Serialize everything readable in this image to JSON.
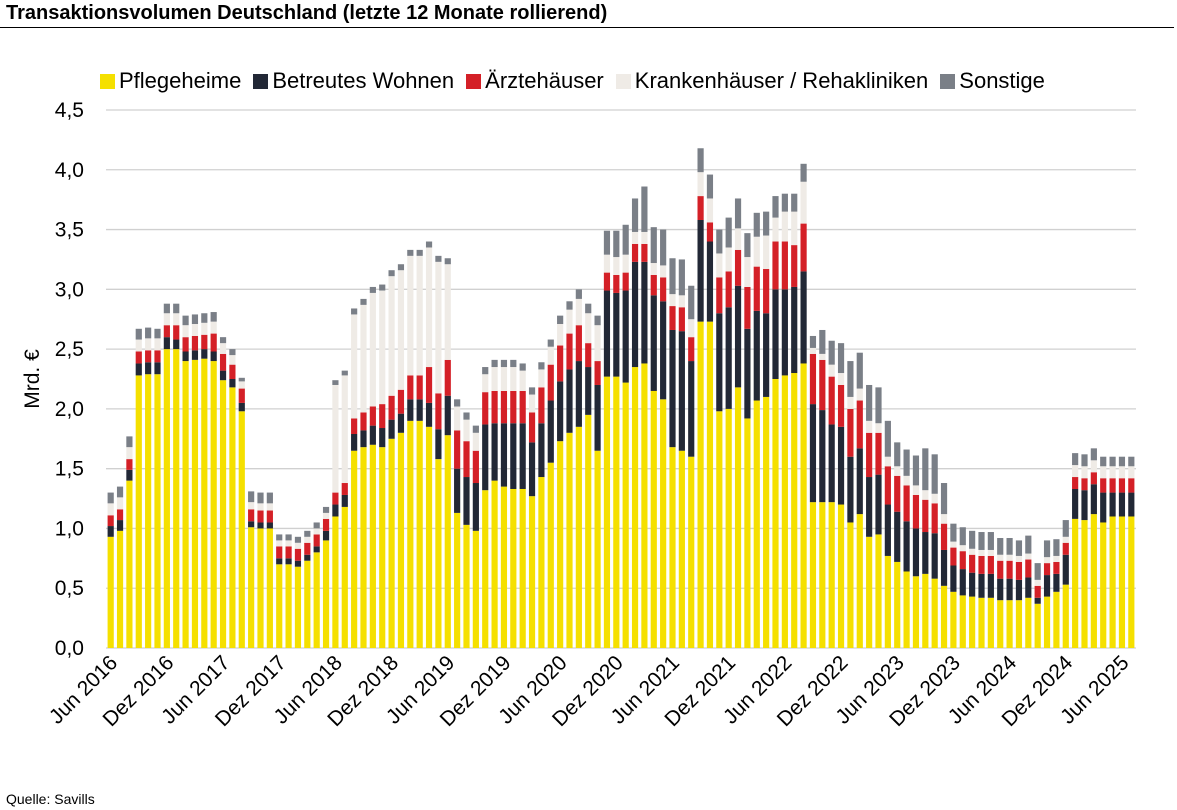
{
  "header": {
    "title": "Transaktionsvolumen Deutschland (letzte 12 Monate rollierend)"
  },
  "footer": {
    "source": "Quelle: Savills"
  },
  "chart_data": {
    "type": "bar",
    "stacked": true,
    "ylabel": "Mrd. €",
    "ylim": [
      0,
      4.5
    ],
    "yticks": [
      "0,0",
      "0,5",
      "1,0",
      "1,5",
      "2,0",
      "2,5",
      "3,0",
      "3,5",
      "4,0",
      "4,5"
    ],
    "grid": true,
    "legend_position": "top",
    "xtick_labels": [
      "Jun 2016",
      "Dez 2016",
      "Jun 2017",
      "Dez 2017",
      "Jun 2018",
      "Dez 2018",
      "Jun 2019",
      "Dez 2019",
      "Jun 2020",
      "Dez 2020",
      "Jun 2021",
      "Dez 2021",
      "Jun 2022",
      "Dez 2022",
      "Jun 2023",
      "Dez 2023",
      "Jun 2024",
      "Dez 2024",
      "Jun 2025"
    ],
    "tick_every": 6,
    "series": [
      {
        "name": "Pflegeheime",
        "color": "#f5e000",
        "values": [
          0.93,
          0.98,
          1.4,
          2.28,
          2.29,
          2.29,
          2.5,
          2.5,
          2.4,
          2.41,
          2.42,
          2.4,
          2.24,
          2.18,
          1.98,
          1.01,
          1.0,
          1.0,
          0.7,
          0.7,
          0.68,
          0.73,
          0.8,
          0.9,
          1.1,
          1.18,
          1.65,
          1.68,
          1.7,
          1.68,
          1.75,
          1.8,
          1.9,
          1.9,
          1.85,
          1.58,
          1.78,
          1.13,
          1.03,
          0.98,
          1.32,
          1.4,
          1.35,
          1.33,
          1.33,
          1.27,
          1.43,
          1.55,
          1.73,
          1.8,
          1.85,
          1.95,
          1.65,
          2.27,
          2.27,
          2.22,
          2.35,
          2.38,
          2.15,
          2.08,
          1.68,
          1.65,
          1.6,
          2.73,
          2.73,
          1.98,
          2.0,
          2.18,
          1.92,
          2.07,
          2.1,
          2.25,
          2.28,
          2.3,
          2.38,
          1.22,
          1.22,
          1.22,
          1.2,
          1.05,
          1.12,
          0.93,
          0.95,
          0.77,
          0.72,
          0.64,
          0.6,
          0.62,
          0.58,
          0.52,
          0.47,
          0.44,
          0.43,
          0.42,
          0.42,
          0.4,
          0.4,
          0.4,
          0.42,
          0.37,
          0.43,
          0.47,
          0.53,
          1.08,
          1.07,
          1.12,
          1.05,
          1.1,
          1.1,
          1.1
        ]
      },
      {
        "name": "Betreutes Wohnen",
        "color": "#222836",
        "values": [
          0.09,
          0.09,
          0.09,
          0.1,
          0.1,
          0.1,
          0.1,
          0.08,
          0.08,
          0.08,
          0.08,
          0.08,
          0.08,
          0.07,
          0.07,
          0.05,
          0.05,
          0.05,
          0.05,
          0.05,
          0.05,
          0.05,
          0.05,
          0.08,
          0.1,
          0.1,
          0.14,
          0.14,
          0.16,
          0.16,
          0.16,
          0.16,
          0.18,
          0.18,
          0.2,
          0.25,
          0.33,
          0.37,
          0.4,
          0.4,
          0.55,
          0.48,
          0.53,
          0.55,
          0.55,
          0.45,
          0.45,
          0.52,
          0.5,
          0.53,
          0.55,
          0.4,
          0.55,
          0.72,
          0.7,
          0.77,
          0.88,
          0.85,
          0.8,
          0.82,
          0.98,
          1.0,
          0.8,
          0.85,
          0.67,
          0.82,
          0.85,
          0.85,
          0.75,
          0.75,
          0.7,
          0.75,
          0.72,
          0.72,
          0.77,
          0.82,
          0.77,
          0.65,
          0.65,
          0.55,
          0.55,
          0.5,
          0.5,
          0.43,
          0.42,
          0.42,
          0.4,
          0.35,
          0.38,
          0.3,
          0.22,
          0.22,
          0.2,
          0.2,
          0.2,
          0.18,
          0.18,
          0.17,
          0.17,
          0.05,
          0.18,
          0.15,
          0.25,
          0.25,
          0.25,
          0.25,
          0.25,
          0.2,
          0.2,
          0.2
        ]
      },
      {
        "name": "Ärztehäuser",
        "color": "#d42027",
        "values": [
          0.09,
          0.09,
          0.09,
          0.1,
          0.1,
          0.1,
          0.1,
          0.12,
          0.12,
          0.12,
          0.12,
          0.15,
          0.14,
          0.12,
          0.12,
          0.1,
          0.1,
          0.1,
          0.1,
          0.1,
          0.1,
          0.1,
          0.1,
          0.1,
          0.1,
          0.1,
          0.13,
          0.15,
          0.16,
          0.2,
          0.2,
          0.2,
          0.2,
          0.2,
          0.3,
          0.3,
          0.3,
          0.32,
          0.3,
          0.27,
          0.27,
          0.27,
          0.27,
          0.27,
          0.27,
          0.25,
          0.3,
          0.3,
          0.3,
          0.3,
          0.3,
          0.2,
          0.2,
          0.15,
          0.15,
          0.15,
          0.15,
          0.15,
          0.17,
          0.2,
          0.2,
          0.2,
          0.2,
          0.2,
          0.16,
          0.3,
          0.3,
          0.3,
          0.35,
          0.37,
          0.37,
          0.4,
          0.4,
          0.35,
          0.4,
          0.42,
          0.42,
          0.4,
          0.35,
          0.4,
          0.4,
          0.37,
          0.35,
          0.32,
          0.3,
          0.3,
          0.28,
          0.27,
          0.25,
          0.22,
          0.15,
          0.15,
          0.15,
          0.15,
          0.15,
          0.15,
          0.15,
          0.15,
          0.15,
          0.1,
          0.1,
          0.1,
          0.1,
          0.1,
          0.1,
          0.1,
          0.12,
          0.12,
          0.12,
          0.12
        ]
      },
      {
        "name": "Krankenhäuser / Rehakliniken",
        "color": "#efebe6",
        "values": [
          0.1,
          0.1,
          0.1,
          0.1,
          0.1,
          0.1,
          0.1,
          0.1,
          0.1,
          0.1,
          0.1,
          0.1,
          0.09,
          0.08,
          0.06,
          0.06,
          0.06,
          0.06,
          0.05,
          0.05,
          0.05,
          0.05,
          0.05,
          0.05,
          0.9,
          0.9,
          0.87,
          0.9,
          0.95,
          0.95,
          1.0,
          1.0,
          1.0,
          1.0,
          1.0,
          1.1,
          0.8,
          0.2,
          0.18,
          0.15,
          0.15,
          0.2,
          0.2,
          0.2,
          0.17,
          0.15,
          0.15,
          0.15,
          0.18,
          0.2,
          0.22,
          0.25,
          0.3,
          0.15,
          0.15,
          0.15,
          0.1,
          0.1,
          0.1,
          0.1,
          0.1,
          0.1,
          0.15,
          0.2,
          0.2,
          0.2,
          0.2,
          0.18,
          0.25,
          0.25,
          0.28,
          0.2,
          0.25,
          0.28,
          0.35,
          0.05,
          0.05,
          0.1,
          0.1,
          0.1,
          0.1,
          0.1,
          0.08,
          0.08,
          0.08,
          0.08,
          0.08,
          0.08,
          0.08,
          0.08,
          0.05,
          0.05,
          0.05,
          0.05,
          0.05,
          0.05,
          0.05,
          0.05,
          0.05,
          0.05,
          0.05,
          0.05,
          0.05,
          0.1,
          0.1,
          0.1,
          0.1,
          0.1,
          0.1,
          0.1
        ]
      },
      {
        "name": "Sonstige",
        "color": "#7a7f87",
        "values": [
          0.09,
          0.09,
          0.09,
          0.09,
          0.09,
          0.08,
          0.08,
          0.08,
          0.08,
          0.08,
          0.08,
          0.08,
          0.05,
          0.05,
          0.03,
          0.09,
          0.09,
          0.09,
          0.05,
          0.05,
          0.05,
          0.05,
          0.05,
          0.05,
          0.04,
          0.04,
          0.05,
          0.05,
          0.05,
          0.05,
          0.05,
          0.05,
          0.05,
          0.05,
          0.05,
          0.05,
          0.05,
          0.06,
          0.06,
          0.06,
          0.06,
          0.06,
          0.06,
          0.06,
          0.06,
          0.06,
          0.06,
          0.06,
          0.07,
          0.07,
          0.08,
          0.08,
          0.08,
          0.2,
          0.22,
          0.25,
          0.28,
          0.38,
          0.3,
          0.3,
          0.3,
          0.3,
          0.28,
          0.2,
          0.2,
          0.2,
          0.25,
          0.25,
          0.2,
          0.2,
          0.2,
          0.18,
          0.15,
          0.15,
          0.15,
          0.1,
          0.2,
          0.2,
          0.25,
          0.3,
          0.3,
          0.3,
          0.3,
          0.3,
          0.2,
          0.22,
          0.25,
          0.35,
          0.33,
          0.26,
          0.15,
          0.15,
          0.15,
          0.15,
          0.15,
          0.14,
          0.14,
          0.13,
          0.15,
          0.14,
          0.14,
          0.14,
          0.14,
          0.1,
          0.1,
          0.1,
          0.08,
          0.08,
          0.08,
          0.08
        ]
      }
    ]
  }
}
